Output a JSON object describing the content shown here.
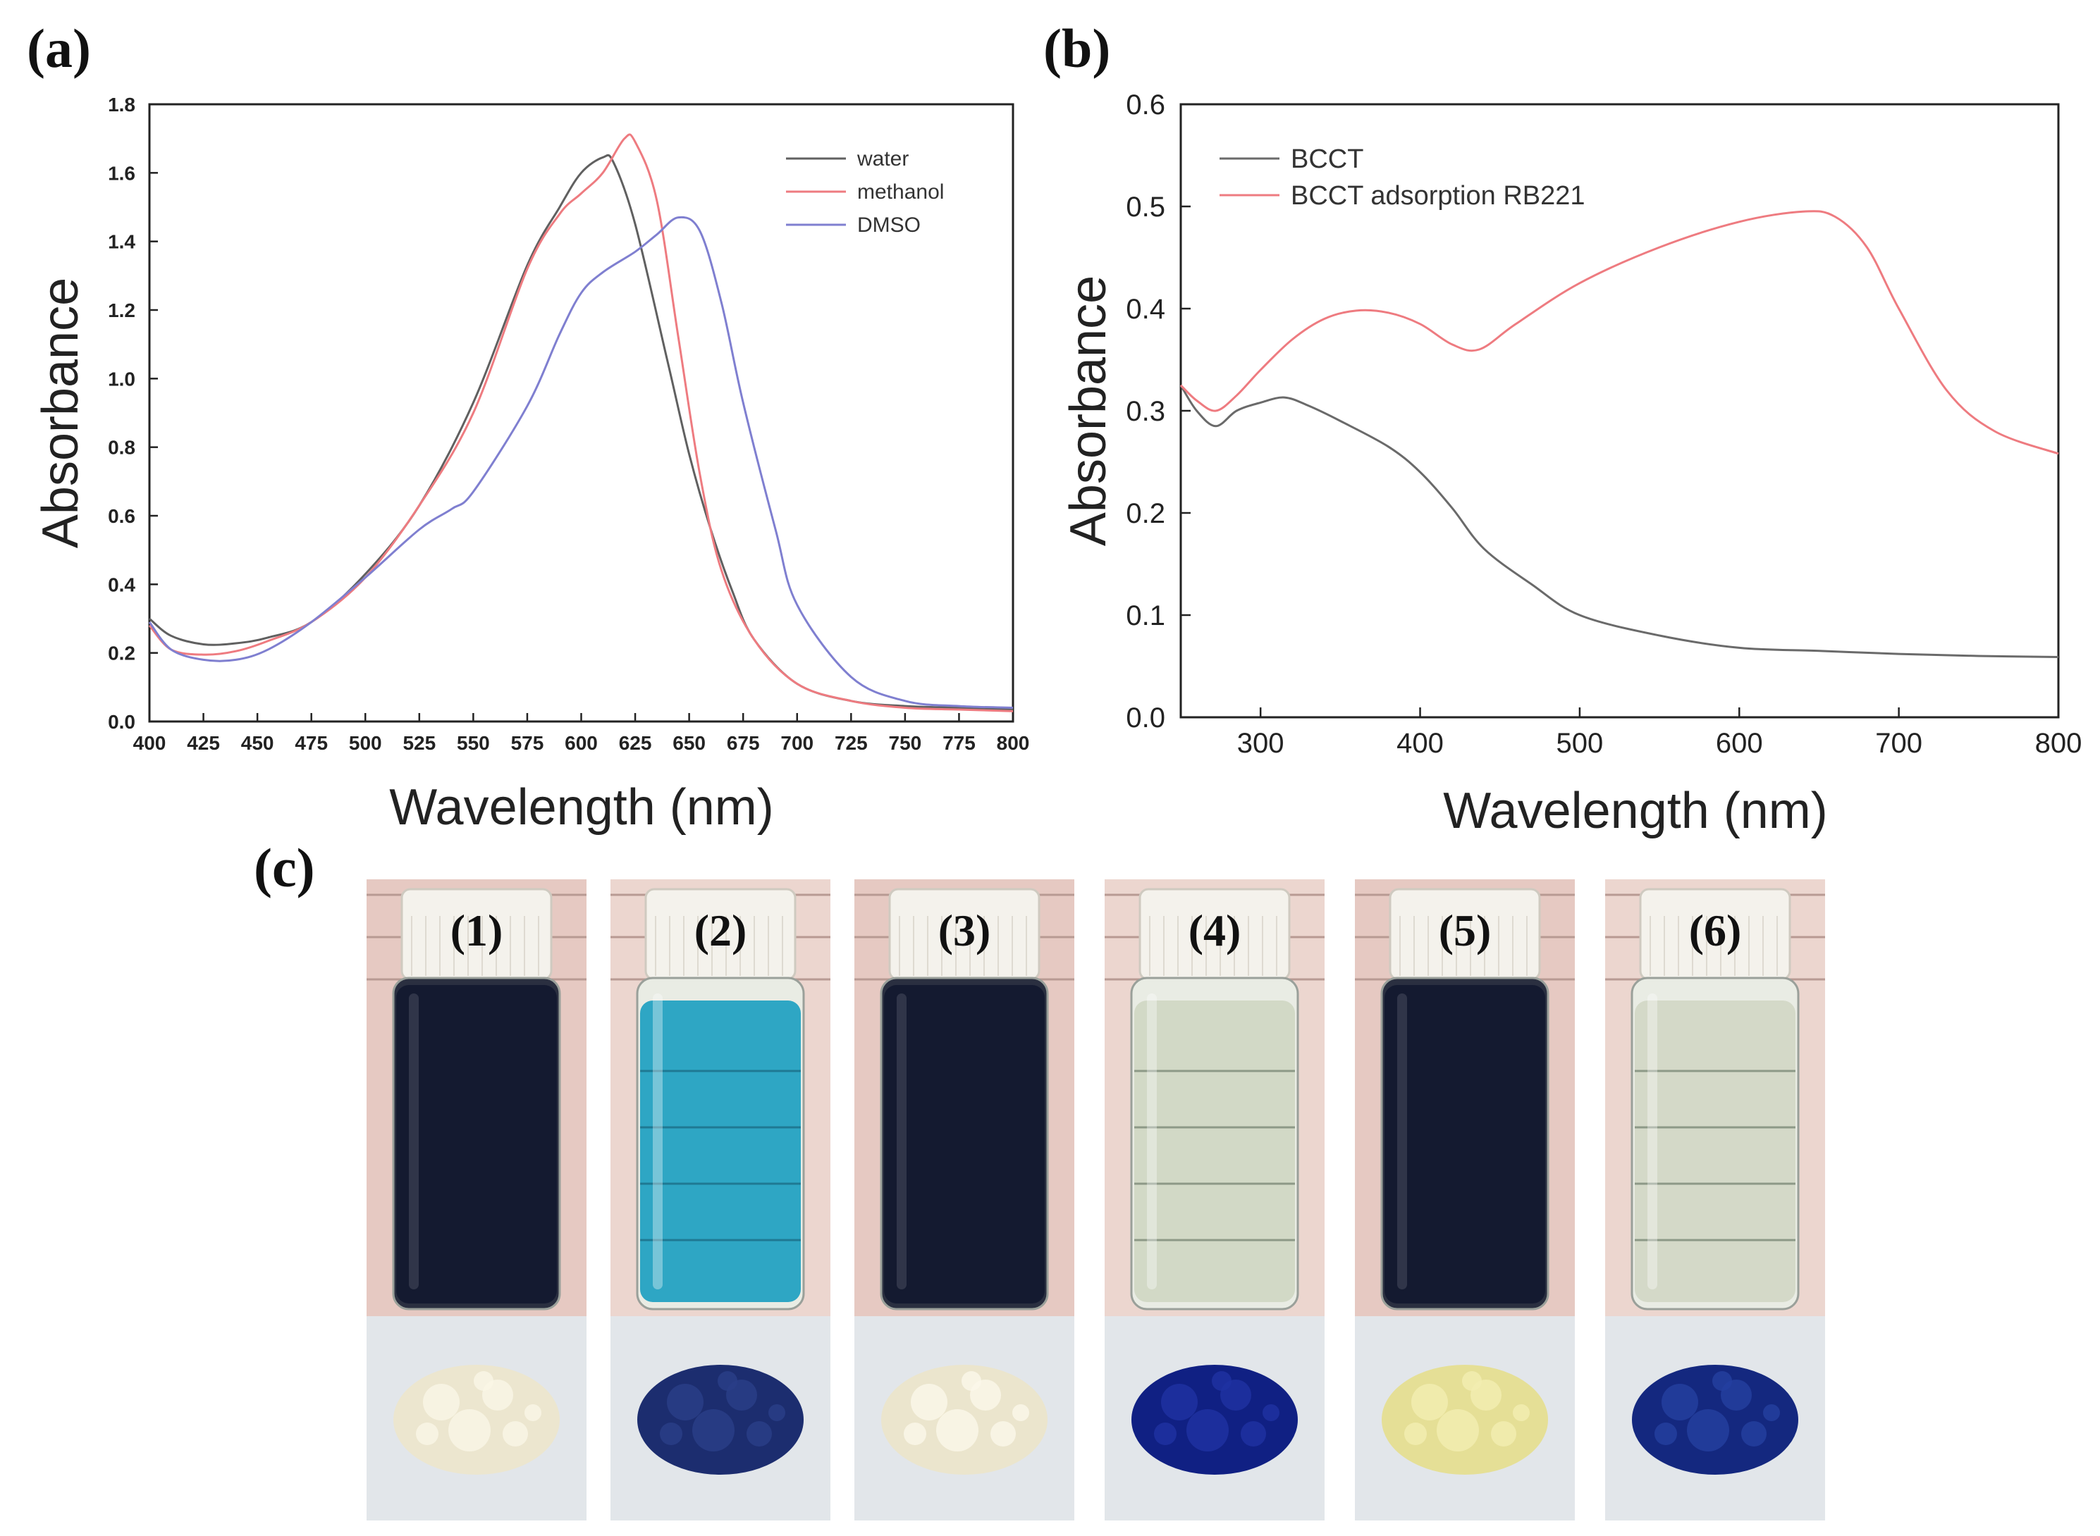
{
  "panel_labels": {
    "a": "(a)",
    "b": "(b)",
    "c": "(c)"
  },
  "colors": {
    "water": "#606060",
    "methanol": "#ee7b80",
    "dmso": "#7f7fd0",
    "bcct": "#6a6a6a",
    "bcct_rb221": "#ee7b80"
  },
  "chart_data": [
    {
      "type": "line",
      "panel": "(a)",
      "xlabel": "Wavelength (nm)",
      "ylabel": "Absorbance",
      "xlim": [
        400,
        800
      ],
      "ylim": [
        0.0,
        1.8
      ],
      "xticks": [
        "400",
        "425",
        "450",
        "475",
        "500",
        "525",
        "550",
        "575",
        "600",
        "625",
        "650",
        "675",
        "700",
        "725",
        "750",
        "775",
        "800"
      ],
      "yticks": [
        "0.0",
        "0.2",
        "0.4",
        "0.6",
        "0.8",
        "1.0",
        "1.2",
        "1.4",
        "1.6",
        "1.8"
      ],
      "legend_position": "top-right",
      "series": [
        {
          "name": "water",
          "color": "#606060",
          "x": [
            400,
            410,
            425,
            440,
            455,
            475,
            500,
            525,
            550,
            575,
            590,
            600,
            610,
            615,
            625,
            640,
            650,
            660,
            670,
            680,
            700,
            725,
            750,
            775,
            800
          ],
          "y": [
            0.3,
            0.25,
            0.225,
            0.228,
            0.245,
            0.29,
            0.43,
            0.63,
            0.93,
            1.33,
            1.5,
            1.6,
            1.645,
            1.63,
            1.45,
            1.05,
            0.78,
            0.56,
            0.38,
            0.24,
            0.11,
            0.06,
            0.045,
            0.04,
            0.035
          ]
        },
        {
          "name": "methanol",
          "color": "#ee7b80",
          "x": [
            400,
            410,
            425,
            440,
            455,
            475,
            500,
            525,
            550,
            575,
            590,
            600,
            610,
            620,
            625,
            635,
            645,
            655,
            665,
            680,
            700,
            725,
            750,
            775,
            800
          ],
          "y": [
            0.28,
            0.21,
            0.195,
            0.205,
            0.235,
            0.29,
            0.42,
            0.63,
            0.9,
            1.32,
            1.48,
            1.54,
            1.6,
            1.7,
            1.69,
            1.52,
            1.12,
            0.72,
            0.44,
            0.24,
            0.11,
            0.06,
            0.04,
            0.035,
            0.03
          ]
        },
        {
          "name": "DMSO",
          "color": "#7f7fd0",
          "x": [
            400,
            410,
            425,
            440,
            455,
            475,
            500,
            525,
            540,
            550,
            575,
            590,
            600,
            610,
            625,
            635,
            645,
            655,
            665,
            675,
            690,
            700,
            725,
            750,
            775,
            800
          ],
          "y": [
            0.29,
            0.21,
            0.18,
            0.18,
            0.21,
            0.29,
            0.42,
            0.56,
            0.62,
            0.67,
            0.92,
            1.13,
            1.25,
            1.31,
            1.37,
            1.42,
            1.47,
            1.43,
            1.22,
            0.93,
            0.56,
            0.34,
            0.13,
            0.06,
            0.045,
            0.04
          ]
        }
      ]
    },
    {
      "type": "line",
      "panel": "(b)",
      "xlabel": "Wavelength (nm)",
      "ylabel": "Absorbance",
      "xlim": [
        250,
        800
      ],
      "ylim": [
        0.0,
        0.6
      ],
      "xticks": [
        "300",
        "400",
        "500",
        "600",
        "700",
        "800"
      ],
      "yticks": [
        "0.0",
        "0.1",
        "0.2",
        "0.3",
        "0.4",
        "0.5",
        "0.6"
      ],
      "legend_position": "top-left",
      "series": [
        {
          "name": "BCCT",
          "color": "#6a6a6a",
          "x": [
            250,
            260,
            272,
            285,
            300,
            315,
            330,
            350,
            380,
            400,
            420,
            440,
            470,
            500,
            550,
            600,
            650,
            700,
            750,
            800
          ],
          "y": [
            0.325,
            0.3,
            0.285,
            0.3,
            0.308,
            0.313,
            0.305,
            0.29,
            0.265,
            0.24,
            0.205,
            0.165,
            0.13,
            0.1,
            0.08,
            0.068,
            0.065,
            0.062,
            0.06,
            0.059
          ]
        },
        {
          "name": "BCCT adsorption RB221",
          "color": "#ee7b80",
          "x": [
            250,
            260,
            272,
            285,
            300,
            320,
            340,
            360,
            380,
            400,
            420,
            437,
            460,
            500,
            550,
            600,
            640,
            660,
            680,
            700,
            730,
            760,
            800
          ],
          "y": [
            0.325,
            0.31,
            0.3,
            0.315,
            0.34,
            0.37,
            0.39,
            0.398,
            0.396,
            0.385,
            0.365,
            0.36,
            0.385,
            0.425,
            0.46,
            0.485,
            0.495,
            0.49,
            0.46,
            0.4,
            0.32,
            0.28,
            0.258
          ]
        }
      ]
    }
  ],
  "vials": [
    {
      "label": "(1)",
      "liquid": "#141a30",
      "powder": "#ece6cf",
      "grains": "#faf6e6"
    },
    {
      "label": "(2)",
      "liquid": "#2ea6c4",
      "powder": "#1c2d6f",
      "grains": "#2b3f88"
    },
    {
      "label": "(3)",
      "liquid": "#141a30",
      "powder": "#ebe5cd",
      "grains": "#fbf8ea"
    },
    {
      "label": "(4)",
      "liquid": "#d2d9c6",
      "powder": "#102083",
      "grains": "#1f32a2"
    },
    {
      "label": "(5)",
      "liquid": "#141a30",
      "powder": "#e5df96",
      "grains": "#f3eeb2"
    },
    {
      "label": "(6)",
      "liquid": "#d4d9c8",
      "powder": "#14287f",
      "grains": "#2440a0"
    }
  ]
}
